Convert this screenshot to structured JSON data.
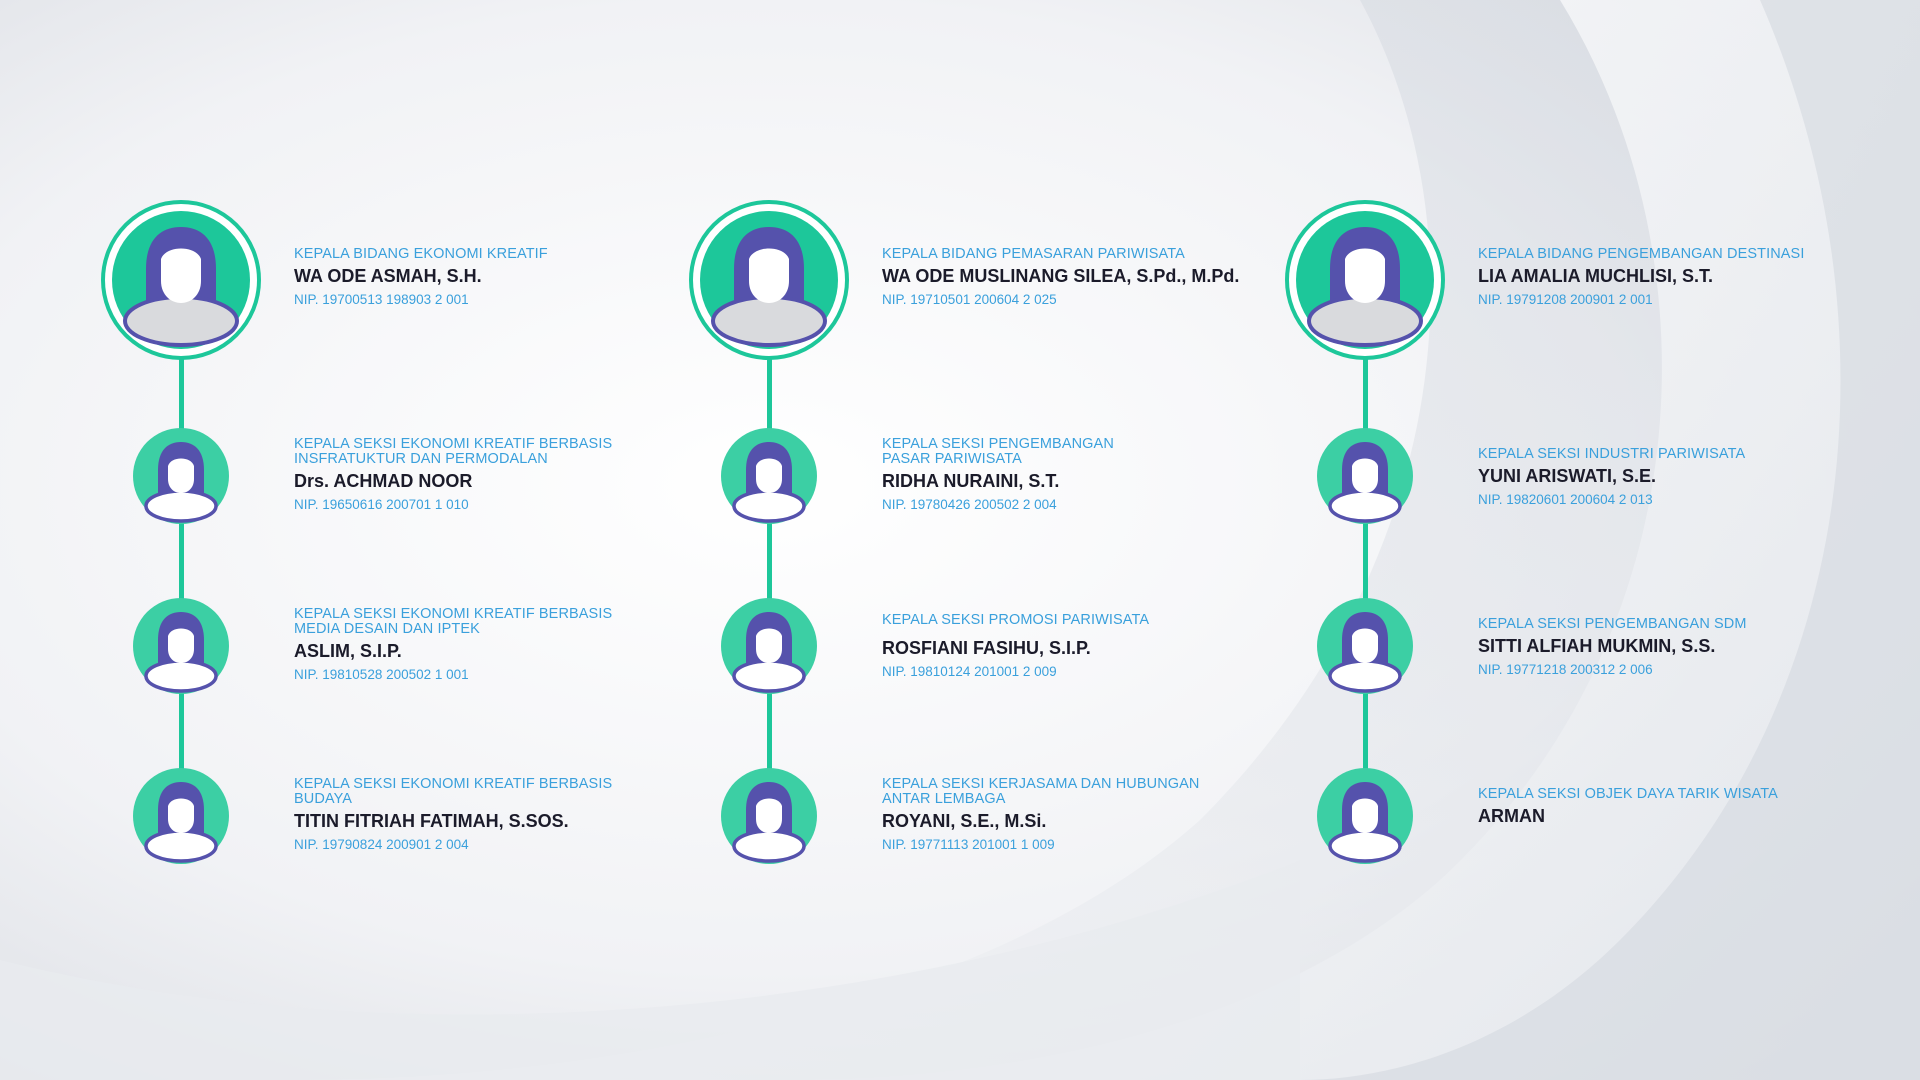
{
  "colors": {
    "accent_green": "#1dc79a",
    "avatar_purple": "#5552ac",
    "role_blue": "#3aa0dc",
    "name_dark": "#1b1b2a"
  },
  "icons": {
    "person": "female-user-avatar-icon"
  },
  "columns": [
    {
      "head": {
        "role": "KEPALA BIDANG EKONOMI KREATIF",
        "name": "WA ODE ASMAH, S.H.",
        "nip": "NIP. 19700513 198903 2 001"
      },
      "staff": [
        {
          "role": "KEPALA SEKSI EKONOMI KREATIF BERBASIS\nINSFRATUKTUR DAN PERMODALAN",
          "name": "Drs. ACHMAD NOOR",
          "nip": "NIP. 19650616 200701 1 010"
        },
        {
          "role": "KEPALA SEKSI EKONOMI KREATIF BERBASIS\nMEDIA DESAIN DAN IPTEK",
          "name": "ASLIM, S.I.P.",
          "nip": "NIP. 19810528 200502 1 001"
        },
        {
          "role": "KEPALA SEKSI EKONOMI KREATIF BERBASIS\nBUDAYA",
          "name": "TITIN FITRIAH FATIMAH, S.SOS.",
          "nip": "NIP. 19790824 200901 2 004"
        }
      ]
    },
    {
      "head": {
        "role": "KEPALA BIDANG PEMASARAN PARIWISATA",
        "name": "WA ODE MUSLINANG SILEA, S.Pd., M.Pd.",
        "nip": "NIP. 19710501 200604 2 025"
      },
      "staff": [
        {
          "role": "KEPALA SEKSI PENGEMBANGAN\nPASAR PARIWISATA",
          "name": "RIDHA NURAINI, S.T.",
          "nip": "NIP. 19780426 200502 2 004"
        },
        {
          "role": "KEPALA SEKSI PROMOSI PARIWISATA",
          "name": "ROSFIANI FASIHU, S.I.P.",
          "nip": "NIP. 19810124 201001 2 009"
        },
        {
          "role": "KEPALA SEKSI KERJASAMA DAN HUBUNGAN\nANTAR LEMBAGA",
          "name": "ROYANI, S.E., M.Si.",
          "nip": "NIP. 19771113 201001 1 009"
        }
      ]
    },
    {
      "head": {
        "role": "KEPALA BIDANG PENGEMBANGAN DESTINASI",
        "name": "LIA AMALIA MUCHLISI, S.T.",
        "nip": "NIP. 19791208 200901 2 001"
      },
      "staff": [
        {
          "role": "KEPALA SEKSI INDUSTRI PARIWISATA",
          "name": "YUNI ARISWATI, S.E.",
          "nip": "NIP. 19820601 200604 2 013"
        },
        {
          "role": "KEPALA SEKSI PENGEMBANGAN SDM",
          "name": "SITTI ALFIAH MUKMIN, S.S.",
          "nip": "NIP. 19771218 200312 2 006"
        },
        {
          "role": "KEPALA SEKSI OBJEK DAYA TARIK WISATA",
          "name": "ARMAN",
          "nip": ""
        }
      ]
    }
  ]
}
